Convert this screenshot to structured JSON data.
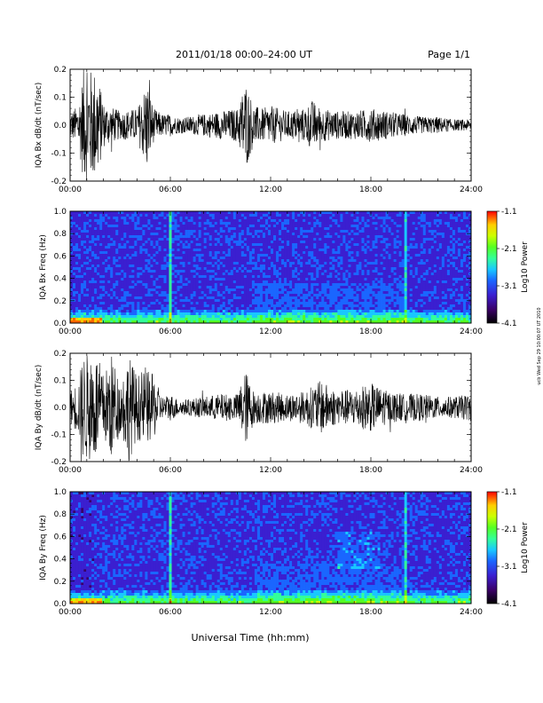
{
  "header": {
    "title": "2011/01/18  00:00–24:00 UT",
    "page": "Page 1/1"
  },
  "side_stamp": "ucb Wed Sep 29 10:00:07 UT 2010",
  "footer": {
    "xlabel": "Universal Time (hh:mm)"
  },
  "colors": {
    "trace": "#000000",
    "colorbar": [
      "#000000",
      "#3a0066",
      "#3b1fd0",
      "#1a66ff",
      "#19c8ff",
      "#33ff99",
      "#55ff22",
      "#ccff00",
      "#ffcc00",
      "#ff6600",
      "#ff0000"
    ]
  },
  "chart_data": [
    {
      "type": "line",
      "panel": "bx-time-series",
      "ylabel": "IQA Bx dB/dt (nT/sec)",
      "ylim": [
        -0.2,
        0.2
      ],
      "xlim": [
        0,
        24
      ],
      "x_ticks": [
        "00:00",
        "06:00",
        "12:00",
        "18:00",
        "24:00"
      ],
      "y_ticks": [
        "-0.2",
        "-0.1",
        "0.0",
        "0.1",
        "0.2"
      ],
      "envelope_x": [
        0,
        0.5,
        0.8,
        1.0,
        1.3,
        1.6,
        2.0,
        3.0,
        4.0,
        4.3,
        4.6,
        5.0,
        5.5,
        6.0,
        6.3,
        7.0,
        8.0,
        9.0,
        10.0,
        10.5,
        11.0,
        11.5,
        12.0,
        13.0,
        14.0,
        14.5,
        15.0,
        16.0,
        17.0,
        18.0,
        19.0,
        20.0,
        21.0,
        22.0,
        23.0,
        24.0
      ],
      "envelope_amp": [
        0.05,
        0.07,
        0.2,
        0.2,
        0.2,
        0.2,
        0.08,
        0.05,
        0.06,
        0.1,
        0.17,
        0.06,
        0.04,
        0.04,
        0.03,
        0.03,
        0.04,
        0.05,
        0.06,
        0.16,
        0.07,
        0.06,
        0.07,
        0.05,
        0.06,
        0.09,
        0.06,
        0.05,
        0.05,
        0.06,
        0.05,
        0.04,
        0.03,
        0.03,
        0.02,
        0.02
      ]
    },
    {
      "type": "heatmap",
      "panel": "bx-spectrogram",
      "ylabel": "IQA Bx Freq (Hz)",
      "ylim": [
        0.0,
        1.0
      ],
      "xlim": [
        0,
        24
      ],
      "x_ticks": [
        "00:00",
        "06:00",
        "12:00",
        "18:00",
        "24:00"
      ],
      "y_ticks": [
        "0.0",
        "0.2",
        "0.4",
        "0.6",
        "0.8",
        "1.0"
      ],
      "colorbar_label": "Log10 Power",
      "colorbar_ticks": [
        "-1.1",
        "-2.1",
        "-3.1",
        "-4.1"
      ],
      "colorbar_range": [
        -4.1,
        -1.1
      ]
    },
    {
      "type": "line",
      "panel": "by-time-series",
      "ylabel": "IQA By dB/dt (nT/sec)",
      "ylim": [
        -0.2,
        0.2
      ],
      "xlim": [
        0,
        24
      ],
      "x_ticks": [
        "00:00",
        "06:00",
        "12:00",
        "18:00",
        "24:00"
      ],
      "y_ticks": [
        "-0.2",
        "-0.1",
        "0.0",
        "0.1",
        "0.2"
      ],
      "envelope_x": [
        0,
        0.5,
        0.8,
        1.0,
        1.3,
        1.6,
        2.0,
        2.5,
        3.0,
        3.5,
        4.0,
        4.5,
        5.0,
        5.5,
        6.0,
        6.5,
        7.0,
        8.0,
        9.0,
        10.0,
        10.5,
        11.0,
        12.0,
        13.0,
        14.0,
        15.0,
        16.0,
        17.0,
        18.0,
        19.0,
        20.0,
        21.0,
        22.0,
        23.0,
        24.0
      ],
      "envelope_amp": [
        0.06,
        0.1,
        0.2,
        0.2,
        0.2,
        0.2,
        0.12,
        0.2,
        0.09,
        0.2,
        0.12,
        0.14,
        0.12,
        0.04,
        0.05,
        0.03,
        0.03,
        0.04,
        0.05,
        0.05,
        0.14,
        0.06,
        0.06,
        0.05,
        0.06,
        0.1,
        0.06,
        0.07,
        0.09,
        0.06,
        0.05,
        0.05,
        0.04,
        0.04,
        0.05
      ]
    },
    {
      "type": "heatmap",
      "panel": "by-spectrogram",
      "ylabel": "IQA By Freq (Hz)",
      "ylim": [
        0.0,
        1.0
      ],
      "xlim": [
        0,
        24
      ],
      "x_ticks": [
        "00:00",
        "06:00",
        "12:00",
        "18:00",
        "24:00"
      ],
      "y_ticks": [
        "0.0",
        "0.2",
        "0.4",
        "0.6",
        "0.8",
        "1.0"
      ],
      "colorbar_label": "Log10 Power",
      "colorbar_ticks": [
        "-1.1",
        "-2.1",
        "-3.1",
        "-4.1"
      ],
      "colorbar_range": [
        -4.1,
        -1.1
      ]
    }
  ]
}
